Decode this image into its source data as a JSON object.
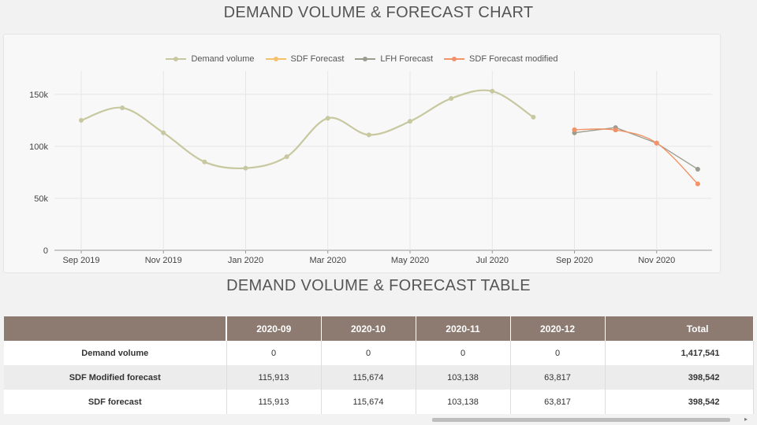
{
  "chart_section": {
    "title": "DEMAND VOLUME & FORECAST CHART"
  },
  "table_section": {
    "title": "DEMAND VOLUME & FORECAST TABLE"
  },
  "chart_data": {
    "type": "line",
    "title": "DEMAND VOLUME & FORECAST CHART",
    "legend_position": "top",
    "x_tick_labels": [
      "Sep 2019",
      "Nov 2019",
      "Jan 2020",
      "Mar 2020",
      "May 2020",
      "Jul 2020",
      "Sep 2020",
      "Nov 2020"
    ],
    "y_tick_labels": [
      "0",
      "50k",
      "100k",
      "150k"
    ],
    "ylim": [
      0,
      165000
    ],
    "x_months": [
      "2019-09",
      "2019-10",
      "2019-11",
      "2019-12",
      "2020-01",
      "2020-02",
      "2020-03",
      "2020-04",
      "2020-05",
      "2020-06",
      "2020-07",
      "2020-08",
      "2020-09",
      "2020-10",
      "2020-11",
      "2020-12"
    ],
    "series": [
      {
        "name": "Demand volume",
        "color": "#c8c8a0",
        "smooth": true,
        "points": [
          [
            "2019-09",
            125000
          ],
          [
            "2019-10",
            137000
          ],
          [
            "2019-11",
            113000
          ],
          [
            "2019-12",
            85000
          ],
          [
            "2020-01",
            79000
          ],
          [
            "2020-02",
            90000
          ],
          [
            "2020-03",
            127000
          ],
          [
            "2020-04",
            111000
          ],
          [
            "2020-05",
            124000
          ],
          [
            "2020-06",
            146000
          ],
          [
            "2020-07",
            153000
          ],
          [
            "2020-08",
            128000
          ]
        ]
      },
      {
        "name": "SDF Forecast",
        "color": "#f5c06a",
        "smooth": true,
        "points": [
          [
            "2020-09",
            115913
          ],
          [
            "2020-10",
            115674
          ],
          [
            "2020-11",
            103138
          ],
          [
            "2020-12",
            63817
          ]
        ]
      },
      {
        "name": "LFH Forecast",
        "color": "#9b9b8e",
        "smooth": false,
        "points": [
          [
            "2020-09",
            113000
          ],
          [
            "2020-10",
            118000
          ],
          [
            "2020-11",
            103000
          ],
          [
            "2020-12",
            78000
          ]
        ]
      },
      {
        "name": "SDF Forecast modified",
        "color": "#f2926a",
        "smooth": true,
        "points": [
          [
            "2020-09",
            115913
          ],
          [
            "2020-10",
            115674
          ],
          [
            "2020-11",
            103138
          ],
          [
            "2020-12",
            63817
          ]
        ]
      }
    ]
  },
  "table": {
    "headers": [
      "",
      "2020-09",
      "2020-10",
      "2020-11",
      "2020-12",
      "Total"
    ],
    "rows": [
      {
        "label": "Demand volume",
        "values": [
          "0",
          "0",
          "0",
          "0"
        ],
        "total": "1,417,541"
      },
      {
        "label": "SDF Modified forecast",
        "values": [
          "115,913",
          "115,674",
          "103,138",
          "63,817"
        ],
        "total": "398,542"
      },
      {
        "label": "SDF forecast",
        "values": [
          "115,913",
          "115,674",
          "103,138",
          "63,817"
        ],
        "total": "398,542"
      }
    ]
  }
}
